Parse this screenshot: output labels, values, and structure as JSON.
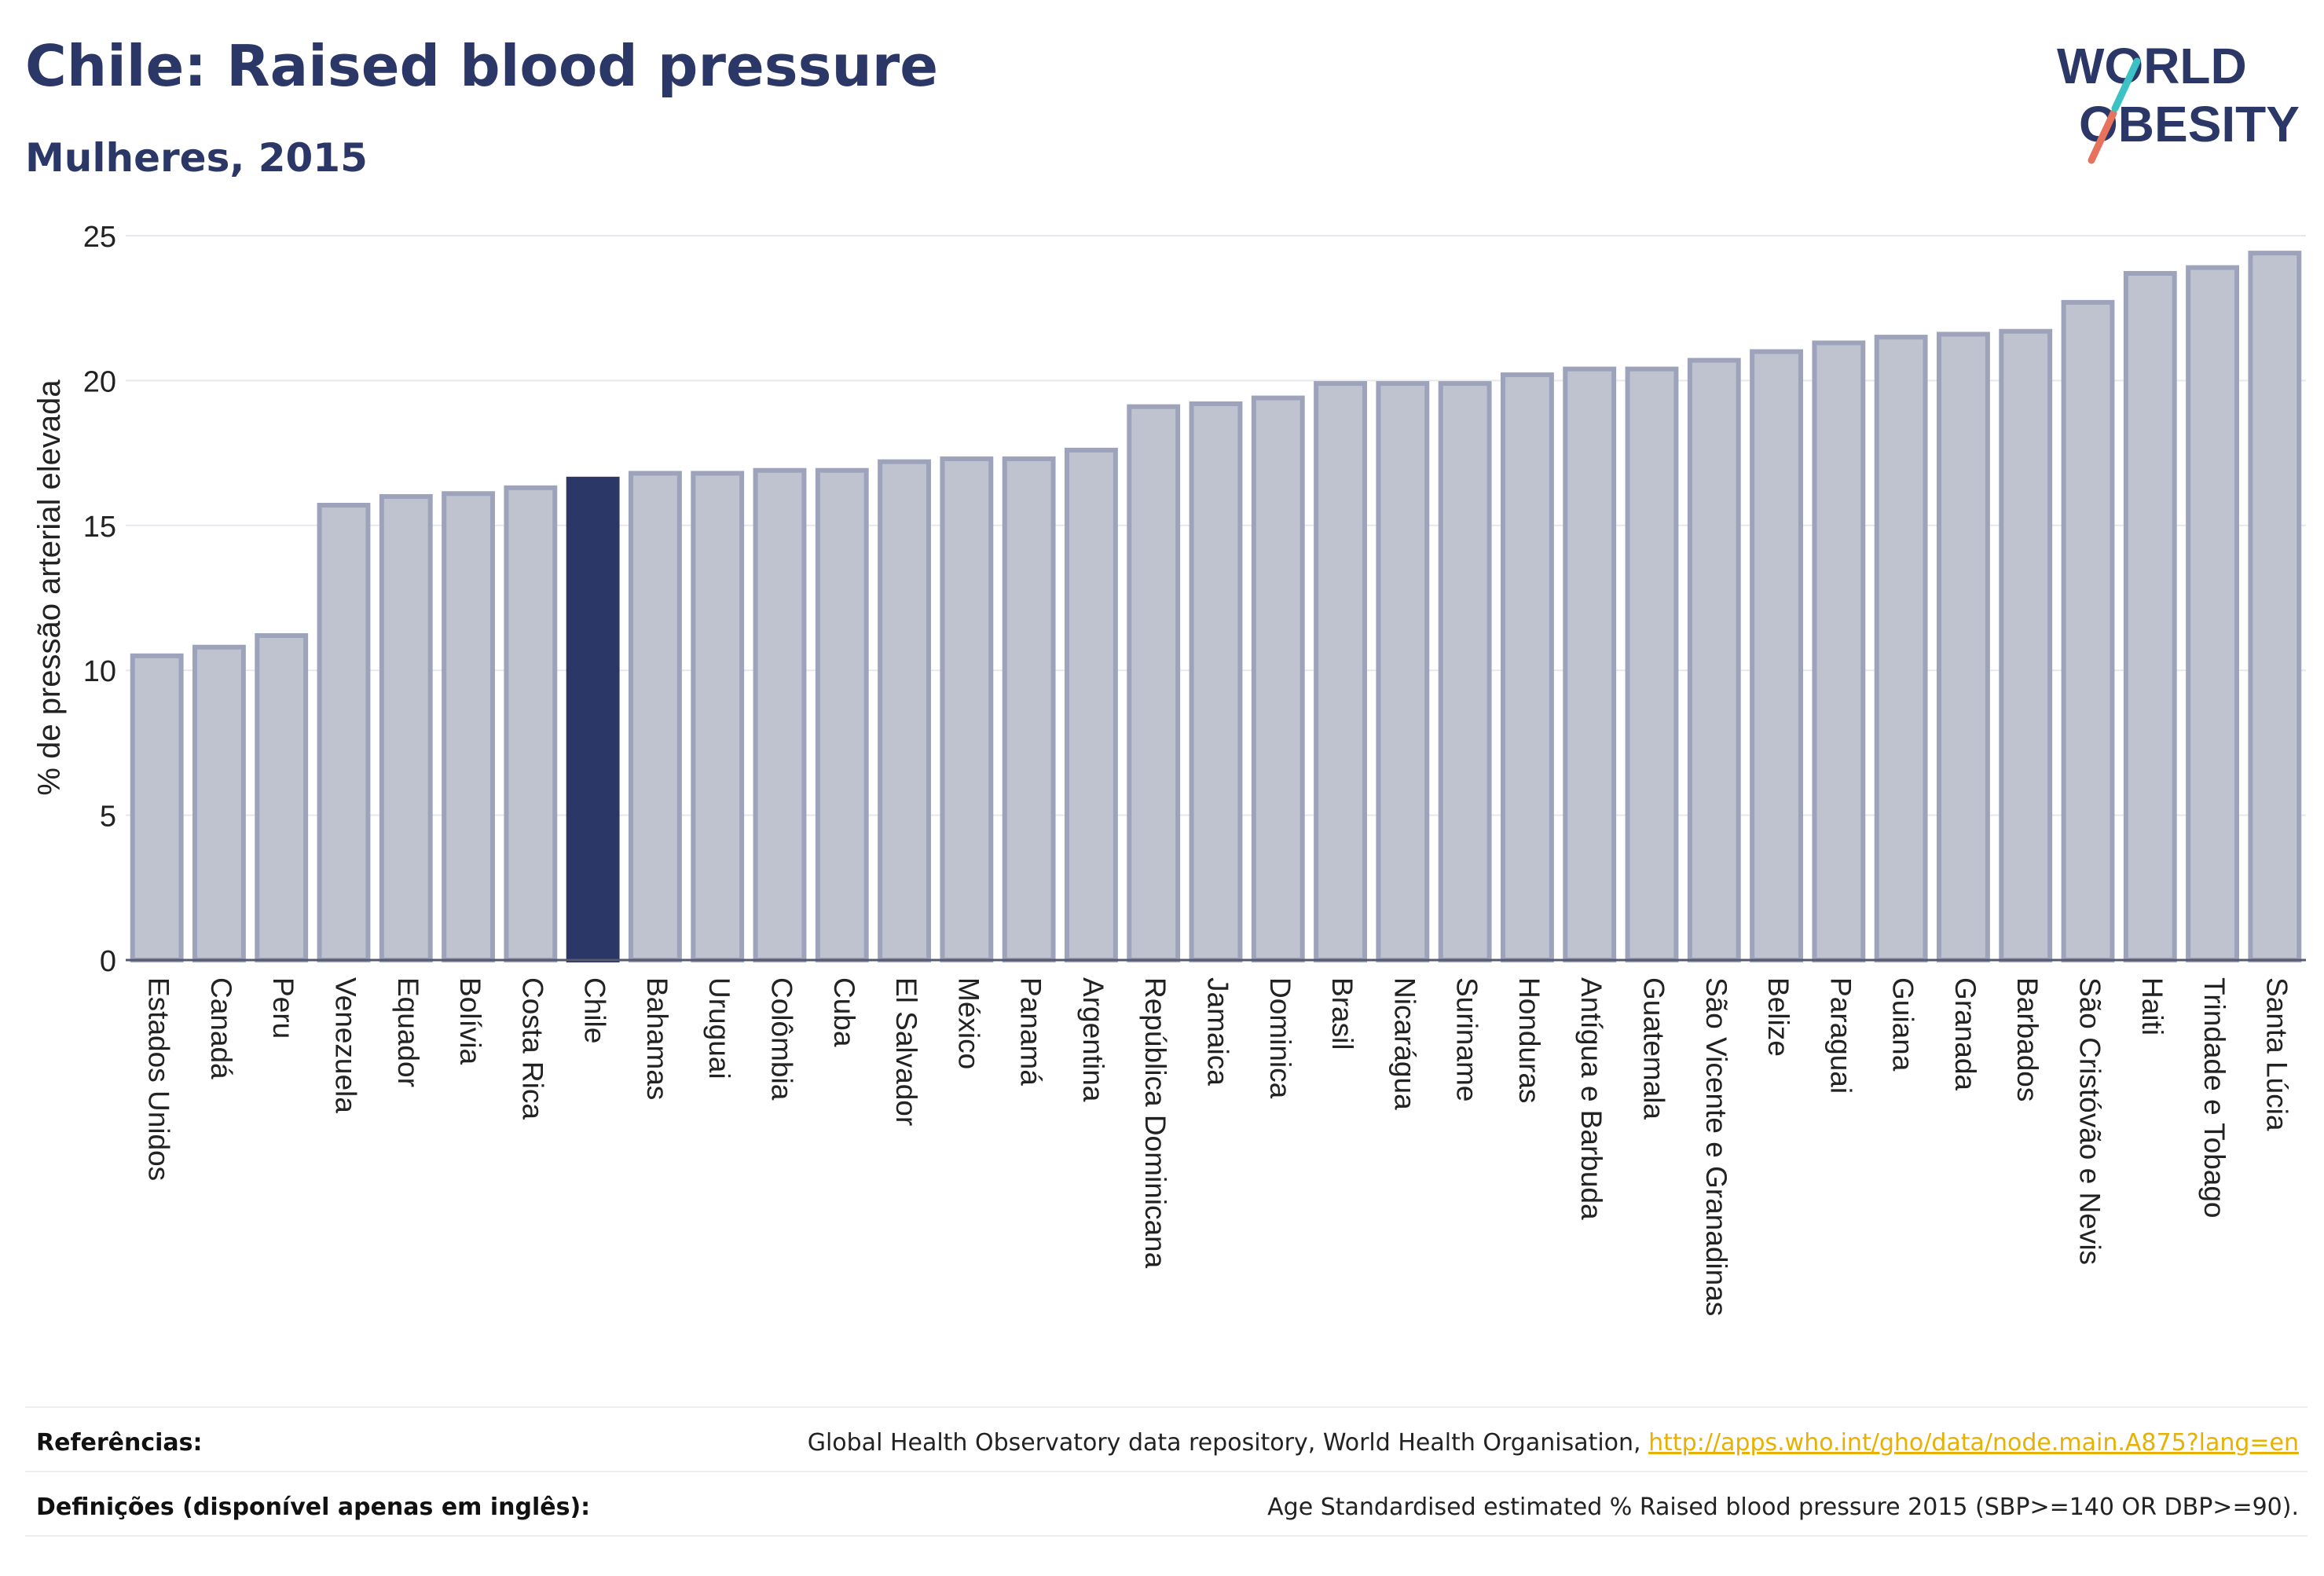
{
  "header": {
    "title": "Chile: Raised blood pressure",
    "subtitle": "Mulheres, 2015"
  },
  "logo": {
    "line1": "WORLD",
    "line2": "OBESITY"
  },
  "colors": {
    "bar": "#bfc2cf",
    "bar_stroke": "#9da3ba",
    "highlight": "#2b3766",
    "text": "#2b3766",
    "grid": "#e6e8ee",
    "axis": "#555a6e",
    "link": "#e8b000"
  },
  "chart_data": {
    "type": "bar",
    "ylabel": "% de pressão arterial elevada",
    "xlabel": "",
    "ylim": [
      0,
      25
    ],
    "yticks": [
      0,
      5,
      10,
      15,
      20,
      25
    ],
    "highlight": "Chile",
    "grid": true,
    "categories": [
      "Estados Unidos",
      "Canadá",
      "Peru",
      "Venezuela",
      "Equador",
      "Bolívia",
      "Costa Rica",
      "Chile",
      "Bahamas",
      "Uruguai",
      "Colômbia",
      "Cuba",
      "El Salvador",
      "México",
      "Panamá",
      "Argentina",
      "República Dominicana",
      "Jamaica",
      "Dominica",
      "Brasil",
      "Nicarágua",
      "Suriname",
      "Honduras",
      "Antígua e Barbuda",
      "Guatemala",
      "São Vicente e Granadinas",
      "Belize",
      "Paraguai",
      "Guiana",
      "Granada",
      "Barbados",
      "São Cristóvão e Nevis",
      "Haiti",
      "Trindade e Tobago",
      "Santa Lúcia"
    ],
    "values": [
      10.5,
      10.8,
      11.2,
      15.7,
      16.0,
      16.1,
      16.3,
      16.6,
      16.8,
      16.8,
      16.9,
      16.9,
      17.2,
      17.3,
      17.3,
      17.6,
      19.1,
      19.2,
      19.4,
      19.9,
      19.9,
      19.9,
      20.2,
      20.4,
      20.4,
      20.7,
      21.0,
      21.3,
      21.5,
      21.6,
      21.7,
      22.7,
      23.7,
      23.9,
      24.4
    ]
  },
  "footer": {
    "references_label": "Referências:",
    "references_text": "Global Health Observatory data repository, World Health Organisation,",
    "references_link": "http://apps.who.int/gho/data/node.main.A875?lang=en",
    "definitions_label": "Definições (disponível apenas em inglês):",
    "definitions_text": "Age Standardised estimated % Raised blood pressure 2015 (SBP>=140 OR DBP>=90)."
  }
}
